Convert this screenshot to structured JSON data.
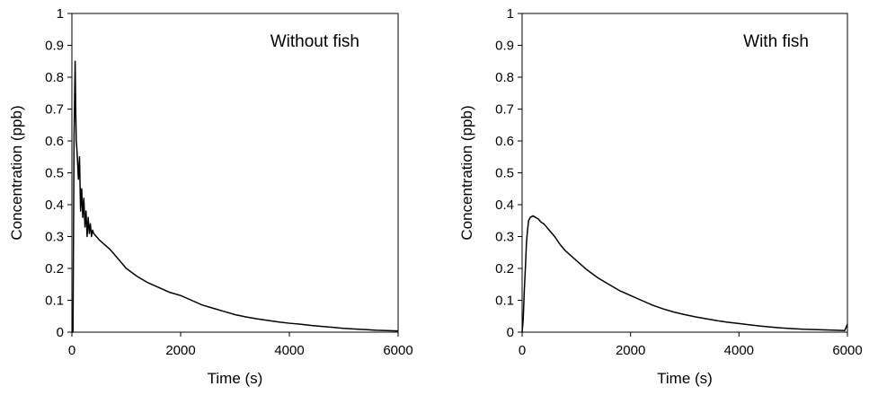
{
  "chart_data": [
    {
      "type": "line",
      "annotation": "Without fish",
      "xlabel": "Time (s)",
      "ylabel": "Concentration (ppb)",
      "xlim": [
        0,
        6000
      ],
      "ylim": [
        0,
        1
      ],
      "xticks": [
        "0",
        "2000",
        "4000",
        "6000"
      ],
      "yticks": [
        "0",
        "0.1",
        "0.2",
        "0.3",
        "0.4",
        "0.5",
        "0.6",
        "0.7",
        "0.8",
        "0.9",
        "1"
      ],
      "grid": false,
      "line_color": "#000000",
      "series": [
        {
          "x": [
            0,
            20,
            40,
            60,
            70,
            80,
            90,
            100,
            120,
            140,
            160,
            180,
            200,
            220,
            240,
            260,
            280,
            300,
            320,
            340,
            360,
            380,
            400,
            450,
            500,
            600,
            700,
            800,
            900,
            1000,
            1200,
            1400,
            1600,
            1800,
            2000,
            2200,
            2400,
            2600,
            2800,
            3000,
            3200,
            3400,
            3600,
            3800,
            4000,
            4200,
            4400,
            4600,
            4800,
            5000,
            5200,
            5400,
            5600,
            5800,
            6000
          ],
          "y": [
            0.0,
            0.0,
            0.62,
            0.85,
            0.7,
            0.6,
            0.58,
            0.55,
            0.48,
            0.55,
            0.38,
            0.45,
            0.36,
            0.42,
            0.33,
            0.38,
            0.3,
            0.36,
            0.31,
            0.34,
            0.3,
            0.32,
            0.31,
            0.3,
            0.29,
            0.275,
            0.26,
            0.24,
            0.22,
            0.2,
            0.175,
            0.155,
            0.14,
            0.125,
            0.115,
            0.1,
            0.085,
            0.075,
            0.065,
            0.055,
            0.048,
            0.042,
            0.037,
            0.032,
            0.028,
            0.025,
            0.021,
            0.018,
            0.015,
            0.012,
            0.01,
            0.008,
            0.006,
            0.005,
            0.004
          ]
        }
      ]
    },
    {
      "type": "line",
      "annotation": "With fish",
      "xlabel": "Time (s)",
      "ylabel": "Concentration (ppb)",
      "xlim": [
        0,
        6000
      ],
      "ylim": [
        0,
        1
      ],
      "xticks": [
        "0",
        "2000",
        "4000",
        "6000"
      ],
      "yticks": [
        "0",
        "0.1",
        "0.2",
        "0.3",
        "0.4",
        "0.5",
        "0.6",
        "0.7",
        "0.8",
        "0.9",
        "1"
      ],
      "grid": false,
      "line_color": "#000000",
      "series": [
        {
          "x": [
            0,
            20,
            40,
            60,
            80,
            100,
            120,
            150,
            200,
            250,
            300,
            350,
            400,
            500,
            600,
            700,
            800,
            900,
            1000,
            1200,
            1400,
            1600,
            1800,
            2000,
            2200,
            2400,
            2600,
            2800,
            3000,
            3200,
            3400,
            3600,
            3800,
            4000,
            4200,
            4400,
            4600,
            4800,
            5000,
            5200,
            5400,
            5600,
            5800,
            5950,
            6000
          ],
          "y": [
            0.0,
            0.04,
            0.13,
            0.2,
            0.28,
            0.32,
            0.35,
            0.36,
            0.365,
            0.36,
            0.355,
            0.345,
            0.34,
            0.32,
            0.3,
            0.275,
            0.255,
            0.24,
            0.225,
            0.195,
            0.17,
            0.15,
            0.13,
            0.115,
            0.1,
            0.085,
            0.073,
            0.063,
            0.055,
            0.048,
            0.042,
            0.036,
            0.031,
            0.027,
            0.023,
            0.019,
            0.016,
            0.013,
            0.011,
            0.009,
            0.008,
            0.007,
            0.006,
            0.005,
            0.025
          ]
        }
      ]
    }
  ]
}
